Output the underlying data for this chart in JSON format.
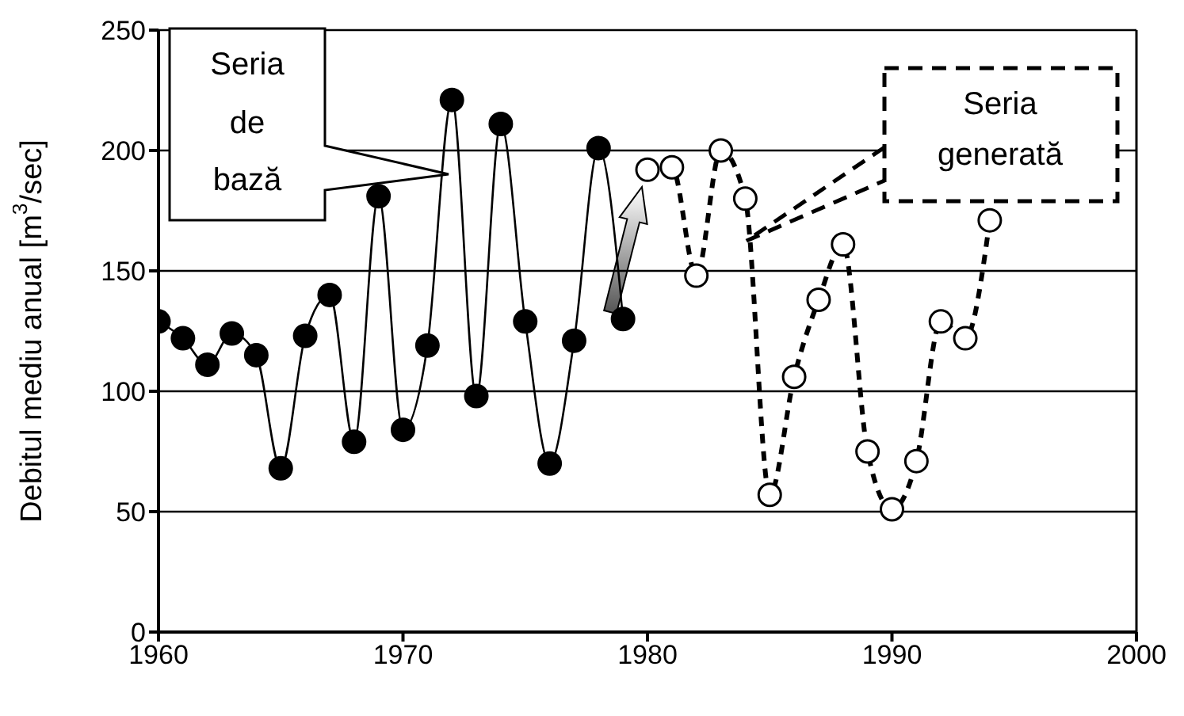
{
  "chart_data": {
    "type": "line",
    "ylabel": "Debitul mediu anual [m$^{3}$/sec]",
    "xlim": [
      1960,
      2000
    ],
    "xticks": [
      1960,
      1970,
      1980,
      1990,
      2000
    ],
    "ylim": [
      0,
      250
    ],
    "yticks": [
      0,
      50,
      100,
      150,
      200,
      250
    ],
    "grid": "y",
    "marker": "circle",
    "legend": false,
    "annotations": [
      "Seria de bază",
      "Seria generată"
    ],
    "series": [
      {
        "color": "#000000",
        "line_style": "solid",
        "x": [
          1960,
          1961,
          1962,
          1963,
          1964,
          1965,
          1966,
          1967,
          1968,
          1969,
          1970,
          1971,
          1972,
          1973,
          1974,
          1975,
          1976,
          1977,
          1978,
          1979
        ],
        "values": [
          129,
          122,
          111,
          124,
          115,
          68,
          123,
          140,
          79,
          181,
          84,
          119,
          221,
          98,
          211,
          129,
          70,
          121,
          201,
          130
        ]
      },
      {
        "color": "#000000",
        "line_style": "dashed",
        "x": [
          1980,
          1981,
          1982,
          1983,
          1984,
          1985,
          1986,
          1987,
          1988,
          1989,
          1990,
          1991,
          1992,
          1993,
          1994
        ],
        "values": [
          192,
          193,
          148,
          200,
          180,
          57,
          106,
          138,
          161,
          75,
          51,
          71,
          129,
          122,
          171
        ]
      }
    ]
  }
}
